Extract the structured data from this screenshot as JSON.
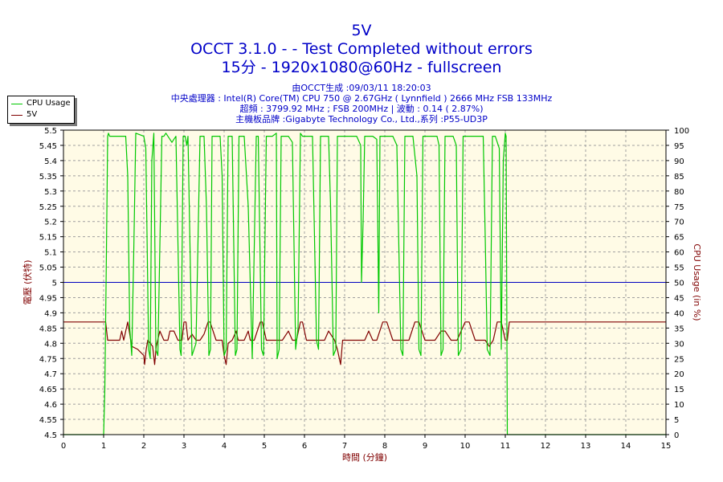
{
  "titles": {
    "main": "5V",
    "line2": "OCCT 3.1.0 -  - Test Completed without errors",
    "line3": "15分 - 1920x1080@60Hz - fullscreen",
    "info1": "由OCCT生成 :09/03/11 18:20:03",
    "info2": "中央處理器 : Intel(R) Core(TM) CPU 750 @ 2.67GHz ( Lynnfield ) 2666 MHz FSB 133MHz",
    "info3": "超頻 : 3799.92 MHz ; FSB 200MHz | 波動 : 0.14 ( 2.87%)",
    "info4": "主機板品牌 :Gigabyte Technology Co., Ltd.,系列 :P55-UD3P"
  },
  "legend": {
    "items": [
      {
        "label": "CPU Usage",
        "color": "#00c800"
      },
      {
        "label": "5V",
        "color": "#800000"
      }
    ]
  },
  "colors": {
    "plot_background": "#fffbe6",
    "grid": "#a0a0a0",
    "reference_line": "#0000c0",
    "cpu_line": "#00c800",
    "voltage_line": "#800000",
    "left_axis_label": "#800000",
    "right_axis_label": "#800000",
    "x_axis_label": "#800000"
  },
  "chart_data": {
    "type": "line",
    "xlabel": "時間 (分鐘)",
    "ylabel_left": "電壓 (伏特)",
    "ylabel_right": "CPU Usage (in %)",
    "xlim": [
      0,
      15
    ],
    "ylim_left": [
      4.5,
      5.5
    ],
    "ylim_right": [
      0,
      100
    ],
    "x_ticks": [
      "0",
      "1",
      "2",
      "3",
      "4",
      "5",
      "6",
      "7",
      "8",
      "9",
      "10",
      "11",
      "12",
      "13",
      "14",
      "15"
    ],
    "y_left_ticks": [
      "4.5",
      "4.55",
      "4.6",
      "4.65",
      "4.7",
      "4.75",
      "4.8",
      "4.85",
      "4.9",
      "4.95",
      "5",
      "5.05",
      "5.1",
      "5.15",
      "5.2",
      "5.25",
      "5.3",
      "5.35",
      "5.4",
      "5.45",
      "5.5"
    ],
    "y_right_ticks": [
      "0",
      "5",
      "10",
      "15",
      "20",
      "25",
      "30",
      "35",
      "40",
      "45",
      "50",
      "55",
      "60",
      "65",
      "70",
      "75",
      "80",
      "85",
      "90",
      "95",
      "100"
    ],
    "grid": true,
    "legend_position": "top-left",
    "reference_value": 5.0,
    "series": [
      {
        "name": "5V",
        "axis": "left",
        "x": [
          0,
          1.05,
          1.1,
          1.15,
          1.4,
          1.45,
          1.5,
          1.6,
          1.7,
          1.85,
          2.0,
          2.02,
          2.06,
          2.1,
          2.22,
          2.27,
          2.31,
          2.4,
          2.5,
          2.6,
          2.65,
          2.75,
          2.85,
          2.95,
          3.0,
          3.05,
          3.1,
          3.2,
          3.3,
          3.4,
          3.5,
          3.6,
          3.65,
          3.8,
          3.95,
          4.0,
          4.05,
          4.1,
          4.2,
          4.3,
          4.35,
          4.5,
          4.6,
          4.65,
          4.75,
          4.9,
          4.95,
          5.05,
          5.15,
          5.3,
          5.45,
          5.6,
          5.7,
          5.8,
          5.9,
          5.95,
          6.05,
          6.2,
          6.35,
          6.5,
          6.6,
          6.75,
          6.82,
          6.9,
          6.95,
          7.1,
          7.3,
          7.5,
          7.6,
          7.7,
          7.8,
          7.95,
          8.05,
          8.2,
          8.3,
          8.45,
          8.6,
          8.75,
          8.85,
          9.0,
          9.1,
          9.25,
          9.4,
          9.5,
          9.65,
          9.8,
          9.9,
          10.0,
          10.1,
          10.25,
          10.4,
          10.5,
          10.6,
          10.7,
          10.8,
          10.9,
          11.0,
          11.05,
          11.1,
          15
        ],
        "y": [
          4.87,
          4.87,
          4.81,
          4.81,
          4.81,
          4.84,
          4.81,
          4.87,
          4.79,
          4.78,
          4.76,
          4.73,
          4.78,
          4.81,
          4.79,
          4.73,
          4.79,
          4.84,
          4.81,
          4.81,
          4.84,
          4.84,
          4.81,
          4.81,
          4.87,
          4.87,
          4.81,
          4.83,
          4.81,
          4.81,
          4.83,
          4.87,
          4.87,
          4.81,
          4.81,
          4.76,
          4.73,
          4.8,
          4.81,
          4.84,
          4.81,
          4.81,
          4.84,
          4.81,
          4.81,
          4.87,
          4.87,
          4.81,
          4.81,
          4.81,
          4.81,
          4.84,
          4.81,
          4.81,
          4.87,
          4.87,
          4.81,
          4.81,
          4.81,
          4.81,
          4.84,
          4.81,
          4.78,
          4.73,
          4.81,
          4.81,
          4.81,
          4.81,
          4.84,
          4.81,
          4.81,
          4.87,
          4.87,
          4.81,
          4.81,
          4.81,
          4.81,
          4.87,
          4.87,
          4.81,
          4.81,
          4.81,
          4.84,
          4.84,
          4.81,
          4.81,
          4.84,
          4.87,
          4.87,
          4.81,
          4.81,
          4.81,
          4.79,
          4.81,
          4.87,
          4.87,
          4.81,
          4.81,
          4.87,
          4.87
        ]
      },
      {
        "name": "CPU Usage",
        "axis": "right",
        "x": [
          0,
          1.0,
          1.03,
          1.07,
          1.1,
          1.12,
          1.15,
          1.2,
          1.55,
          1.6,
          1.65,
          1.7,
          1.75,
          1.8,
          2.0,
          2.05,
          2.12,
          2.16,
          2.2,
          2.25,
          2.3,
          2.35,
          2.45,
          2.5,
          2.55,
          2.6,
          2.7,
          2.8,
          2.9,
          2.93,
          2.98,
          3.03,
          3.07,
          3.1,
          3.2,
          3.3,
          3.4,
          3.5,
          3.56,
          3.62,
          3.66,
          3.7,
          3.8,
          3.9,
          3.95,
          4.0,
          4.05,
          4.1,
          4.2,
          4.28,
          4.32,
          4.37,
          4.42,
          4.5,
          4.6,
          4.7,
          4.8,
          4.85,
          4.93,
          4.98,
          5.05,
          5.1,
          5.2,
          5.3,
          5.32,
          5.37,
          5.42,
          5.5,
          5.6,
          5.7,
          5.78,
          5.84,
          5.9,
          5.95,
          6.1,
          6.2,
          6.3,
          6.35,
          6.4,
          6.5,
          6.6,
          6.65,
          6.72,
          6.78,
          6.82,
          6.88,
          6.95,
          7.05,
          7.15,
          7.3,
          7.4,
          7.42,
          7.46,
          7.5,
          7.6,
          7.7,
          7.8,
          7.85,
          7.88,
          7.92,
          8.0,
          8.1,
          8.2,
          8.3,
          8.4,
          8.45,
          8.5,
          8.55,
          8.6,
          8.7,
          8.8,
          8.85,
          8.9,
          8.95,
          9.0,
          9.1,
          9.2,
          9.3,
          9.35,
          9.4,
          9.45,
          9.5,
          9.6,
          9.7,
          9.78,
          9.83,
          9.9,
          9.95,
          10.05,
          10.1,
          10.2,
          10.3,
          10.4,
          10.45,
          10.5,
          10.55,
          10.62,
          10.68,
          10.75,
          10.85,
          10.9,
          10.95,
          11.0,
          11.02,
          11.05,
          15
        ],
        "y": [
          0,
          0,
          15,
          60,
          98,
          99,
          98,
          98,
          98,
          85,
          35,
          26,
          60,
          99,
          98,
          94,
          28,
          25,
          90,
          99,
          28,
          26,
          98,
          98,
          99,
          98,
          96,
          98,
          28,
          26,
          98,
          98,
          95,
          98,
          26,
          30,
          98,
          98,
          75,
          26,
          28,
          98,
          98,
          98,
          85,
          26,
          28,
          98,
          98,
          26,
          28,
          98,
          98,
          98,
          75,
          25,
          98,
          98,
          28,
          26,
          98,
          98,
          98,
          99,
          25,
          28,
          98,
          98,
          98,
          96,
          28,
          35,
          99,
          98,
          98,
          98,
          31,
          28,
          98,
          98,
          98,
          75,
          26,
          28,
          98,
          98,
          98,
          98,
          98,
          98,
          95,
          50,
          70,
          98,
          98,
          98,
          97,
          40,
          98,
          98,
          98,
          98,
          98,
          95,
          28,
          26,
          98,
          98,
          98,
          98,
          85,
          28,
          26,
          98,
          98,
          98,
          98,
          98,
          95,
          26,
          28,
          98,
          98,
          98,
          95,
          26,
          28,
          98,
          98,
          98,
          98,
          98,
          98,
          98,
          65,
          28,
          26,
          98,
          98,
          94,
          28,
          90,
          99,
          98,
          0,
          0
        ]
      }
    ]
  }
}
